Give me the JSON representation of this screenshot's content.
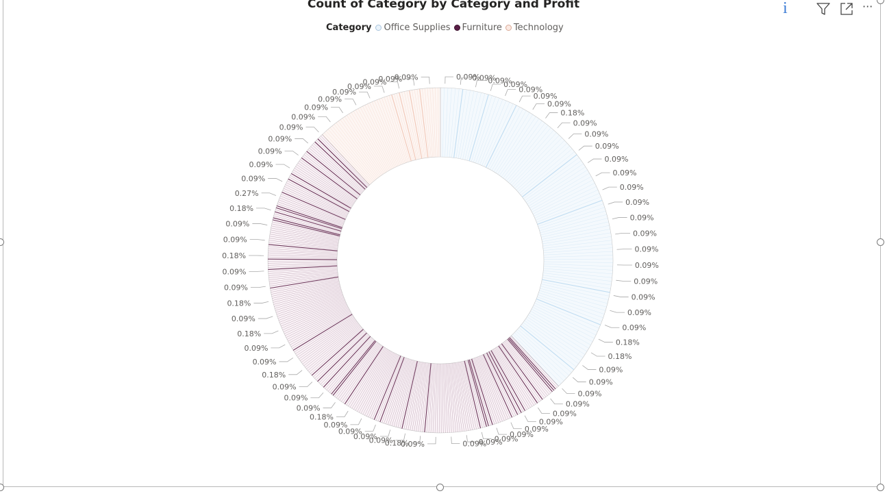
{
  "visual": {
    "title": "Count of Category by Category and Profit",
    "legend": {
      "title": "Category",
      "items": [
        {
          "label": "Office Supplies",
          "color": "#cfe3f5"
        },
        {
          "label": "Furniture",
          "color": "#5a1f46"
        },
        {
          "label": "Technology",
          "color": "#f2cfc2"
        }
      ]
    },
    "toolbar": {
      "info_icon": "info-icon",
      "filter_icon": "filter-icon",
      "focus_icon": "focus-mode-icon",
      "more_icon": "more-options-icon",
      "info_glyph": "i",
      "more_glyph": "···"
    }
  },
  "chart_data": {
    "type": "donut",
    "title": "Count of Category by Category and Profit",
    "legend_title": "Category",
    "legend_position": "top-center",
    "categories": [
      "Office Supplies",
      "Furniture",
      "Technology"
    ],
    "category_colors": {
      "Office Supplies": "#cfe3f5",
      "Furniture": "#5a1f46",
      "Technology": "#f2cfc2"
    },
    "category_shares": [
      {
        "category": "Office Supplies",
        "share_pct": 38
      },
      {
        "category": "Furniture",
        "share_pct": 50
      },
      {
        "category": "Technology",
        "share_pct": 12
      }
    ],
    "visible_data_labels": [
      "0.09%",
      "0.09%",
      "0.09%",
      "0.09%",
      "0.09%",
      "0.09%",
      "0.09%",
      "0.18%",
      "0.09%",
      "0.09%",
      "0.09%",
      "0.09%",
      "0.09%",
      "0.09%",
      "0.09%",
      "0.09%",
      "0.09%",
      "0.09%",
      "0.09%",
      "0.09%",
      "0.09%",
      "0.09%",
      "0.09%",
      "0.18%",
      "0.18%",
      "0.09%",
      "0.09%",
      "0.09%",
      "0.09%",
      "0.09%",
      "0.09%",
      "0.09%",
      "0.09%",
      "0.09%",
      "0.09%",
      "0.09%",
      "0.09%",
      "0.18%",
      "0.09%",
      "0.09%",
      "0.09%",
      "0.09%",
      "0.18%",
      "0.09%",
      "0.09%",
      "0.09%",
      "0.18%",
      "0.09%",
      "0.09%",
      "0.18%",
      "0.09%",
      "0.18%",
      "0.09%",
      "0.09%",
      "0.18%",
      "0.09%",
      "0.09%",
      "0.18%",
      "0.27%",
      "0.09%",
      "0.09%",
      "0.09%",
      "0.09%",
      "0.09%",
      "0.09%",
      "0.09%",
      "0.09%",
      "0.09%",
      "0.09%",
      "0.09%",
      "0.09%",
      "0.09%"
    ]
  }
}
